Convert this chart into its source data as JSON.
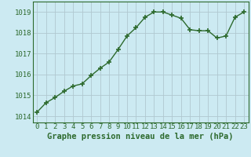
{
  "x": [
    0,
    1,
    2,
    3,
    4,
    5,
    6,
    7,
    8,
    9,
    10,
    11,
    12,
    13,
    14,
    15,
    16,
    17,
    18,
    19,
    20,
    21,
    22,
    23
  ],
  "y": [
    1014.2,
    1014.65,
    1014.9,
    1015.2,
    1015.45,
    1015.55,
    1015.95,
    1016.3,
    1016.6,
    1017.2,
    1017.85,
    1018.25,
    1018.75,
    1019.0,
    1019.0,
    1018.85,
    1018.7,
    1018.15,
    1018.1,
    1018.1,
    1017.75,
    1017.85,
    1018.75,
    1019.0
  ],
  "line_color": "#2d6a2d",
  "marker": "+",
  "marker_size": 4,
  "marker_lw": 1.2,
  "line_width": 1.0,
  "bg_color": "#cceaf2",
  "grid_color": "#b0c8d0",
  "xlabel": "Graphe pression niveau de la mer (hPa)",
  "xlabel_fontsize": 7.5,
  "xlabel_color": "#2d6a2d",
  "xlabel_weight": "bold",
  "ylabel_ticks": [
    1014,
    1015,
    1016,
    1017,
    1018,
    1019
  ],
  "ylim": [
    1013.7,
    1019.5
  ],
  "xlim": [
    -0.5,
    23.5
  ],
  "tick_fontsize": 6.5,
  "tick_color": "#2d6a2d",
  "spine_color": "#2d6a2d"
}
